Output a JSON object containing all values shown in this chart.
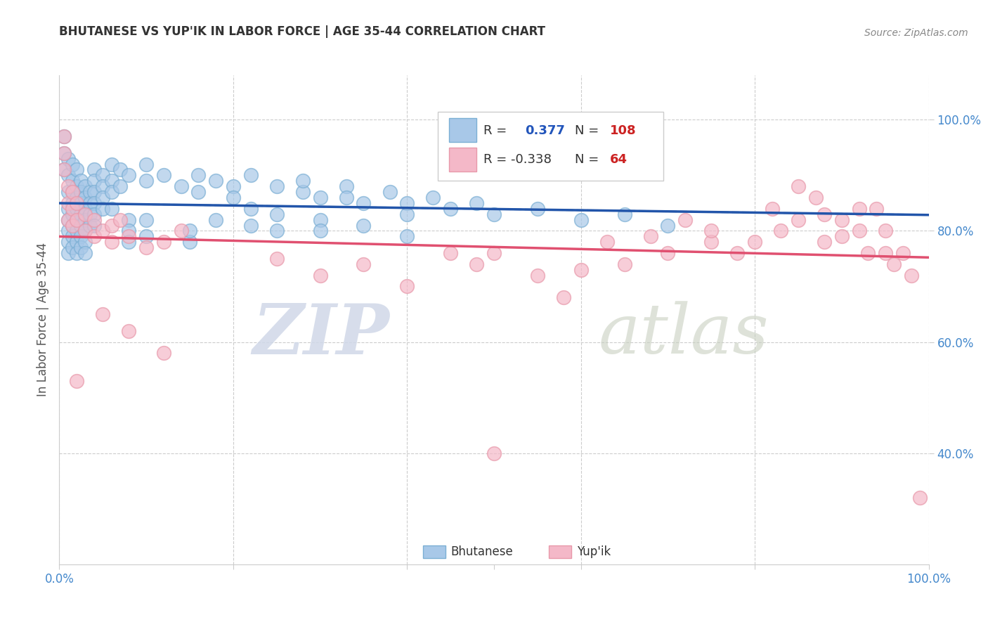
{
  "title": "BHUTANESE VS YUP'IK IN LABOR FORCE | AGE 35-44 CORRELATION CHART",
  "source_text": "Source: ZipAtlas.com",
  "ylabel": "In Labor Force | Age 35-44",
  "xlim": [
    0.0,
    1.0
  ],
  "ylim": [
    0.2,
    1.08
  ],
  "y_tick_positions": [
    0.4,
    0.6,
    0.8,
    1.0
  ],
  "x_tick_positions": [
    0.0,
    0.2,
    0.4,
    0.6,
    0.8,
    1.0
  ],
  "grid_color": "#cccccc",
  "background_color": "#ffffff",
  "watermark_zip": "ZIP",
  "watermark_atlas": "atlas",
  "blue_color": "#a8c8e8",
  "blue_edge_color": "#7bafd4",
  "pink_color": "#f4b8c8",
  "pink_edge_color": "#e899aa",
  "blue_line_color": "#2255aa",
  "pink_line_color": "#e05070",
  "blue_dashed_color": "#99bbdd",
  "tick_label_color": "#4488cc",
  "title_color": "#333333",
  "source_color": "#888888",
  "ylabel_color": "#555555",
  "blue_points": [
    [
      0.005,
      0.97
    ],
    [
      0.005,
      0.94
    ],
    [
      0.005,
      0.91
    ],
    [
      0.01,
      0.93
    ],
    [
      0.01,
      0.9
    ],
    [
      0.01,
      0.87
    ],
    [
      0.01,
      0.84
    ],
    [
      0.01,
      0.82
    ],
    [
      0.01,
      0.8
    ],
    [
      0.01,
      0.78
    ],
    [
      0.01,
      0.76
    ],
    [
      0.015,
      0.92
    ],
    [
      0.015,
      0.89
    ],
    [
      0.015,
      0.87
    ],
    [
      0.015,
      0.85
    ],
    [
      0.015,
      0.83
    ],
    [
      0.015,
      0.81
    ],
    [
      0.015,
      0.79
    ],
    [
      0.015,
      0.77
    ],
    [
      0.02,
      0.91
    ],
    [
      0.02,
      0.88
    ],
    [
      0.02,
      0.86
    ],
    [
      0.02,
      0.84
    ],
    [
      0.02,
      0.82
    ],
    [
      0.02,
      0.8
    ],
    [
      0.02,
      0.78
    ],
    [
      0.02,
      0.76
    ],
    [
      0.025,
      0.89
    ],
    [
      0.025,
      0.87
    ],
    [
      0.025,
      0.85
    ],
    [
      0.025,
      0.83
    ],
    [
      0.025,
      0.81
    ],
    [
      0.025,
      0.79
    ],
    [
      0.025,
      0.77
    ],
    [
      0.03,
      0.88
    ],
    [
      0.03,
      0.86
    ],
    [
      0.03,
      0.84
    ],
    [
      0.03,
      0.82
    ],
    [
      0.03,
      0.8
    ],
    [
      0.03,
      0.78
    ],
    [
      0.03,
      0.76
    ],
    [
      0.035,
      0.87
    ],
    [
      0.035,
      0.85
    ],
    [
      0.035,
      0.83
    ],
    [
      0.035,
      0.81
    ],
    [
      0.04,
      0.91
    ],
    [
      0.04,
      0.89
    ],
    [
      0.04,
      0.87
    ],
    [
      0.04,
      0.85
    ],
    [
      0.04,
      0.83
    ],
    [
      0.04,
      0.81
    ],
    [
      0.05,
      0.9
    ],
    [
      0.05,
      0.88
    ],
    [
      0.05,
      0.86
    ],
    [
      0.05,
      0.84
    ],
    [
      0.06,
      0.89
    ],
    [
      0.06,
      0.87
    ],
    [
      0.06,
      0.92
    ],
    [
      0.07,
      0.91
    ],
    [
      0.07,
      0.88
    ],
    [
      0.08,
      0.9
    ],
    [
      0.1,
      0.89
    ],
    [
      0.1,
      0.92
    ],
    [
      0.12,
      0.9
    ],
    [
      0.14,
      0.88
    ],
    [
      0.16,
      0.9
    ],
    [
      0.16,
      0.87
    ],
    [
      0.18,
      0.89
    ],
    [
      0.2,
      0.88
    ],
    [
      0.2,
      0.86
    ],
    [
      0.22,
      0.9
    ],
    [
      0.25,
      0.88
    ],
    [
      0.28,
      0.87
    ],
    [
      0.28,
      0.89
    ],
    [
      0.3,
      0.86
    ],
    [
      0.33,
      0.88
    ],
    [
      0.33,
      0.86
    ],
    [
      0.35,
      0.85
    ],
    [
      0.38,
      0.87
    ],
    [
      0.4,
      0.85
    ],
    [
      0.4,
      0.83
    ],
    [
      0.43,
      0.86
    ],
    [
      0.45,
      0.84
    ],
    [
      0.48,
      0.85
    ],
    [
      0.5,
      0.83
    ],
    [
      0.55,
      0.84
    ],
    [
      0.6,
      0.82
    ],
    [
      0.65,
      0.83
    ],
    [
      0.7,
      0.81
    ],
    [
      0.18,
      0.82
    ],
    [
      0.22,
      0.84
    ],
    [
      0.22,
      0.81
    ],
    [
      0.25,
      0.83
    ],
    [
      0.25,
      0.8
    ],
    [
      0.3,
      0.82
    ],
    [
      0.3,
      0.8
    ],
    [
      0.35,
      0.81
    ],
    [
      0.4,
      0.79
    ],
    [
      0.15,
      0.78
    ],
    [
      0.15,
      0.8
    ],
    [
      0.1,
      0.82
    ],
    [
      0.1,
      0.79
    ],
    [
      0.06,
      0.84
    ],
    [
      0.08,
      0.82
    ],
    [
      0.08,
      0.8
    ],
    [
      0.08,
      0.78
    ]
  ],
  "pink_points": [
    [
      0.005,
      0.97
    ],
    [
      0.005,
      0.94
    ],
    [
      0.005,
      0.91
    ],
    [
      0.01,
      0.88
    ],
    [
      0.01,
      0.85
    ],
    [
      0.01,
      0.82
    ],
    [
      0.015,
      0.87
    ],
    [
      0.015,
      0.84
    ],
    [
      0.015,
      0.81
    ],
    [
      0.02,
      0.85
    ],
    [
      0.02,
      0.82
    ],
    [
      0.03,
      0.83
    ],
    [
      0.03,
      0.8
    ],
    [
      0.04,
      0.82
    ],
    [
      0.04,
      0.79
    ],
    [
      0.05,
      0.8
    ],
    [
      0.06,
      0.81
    ],
    [
      0.06,
      0.78
    ],
    [
      0.07,
      0.82
    ],
    [
      0.08,
      0.79
    ],
    [
      0.1,
      0.77
    ],
    [
      0.12,
      0.78
    ],
    [
      0.14,
      0.8
    ],
    [
      0.02,
      0.53
    ],
    [
      0.05,
      0.65
    ],
    [
      0.08,
      0.62
    ],
    [
      0.12,
      0.58
    ],
    [
      0.25,
      0.75
    ],
    [
      0.3,
      0.72
    ],
    [
      0.35,
      0.74
    ],
    [
      0.4,
      0.7
    ],
    [
      0.45,
      0.76
    ],
    [
      0.48,
      0.74
    ],
    [
      0.5,
      0.76
    ],
    [
      0.55,
      0.72
    ],
    [
      0.58,
      0.68
    ],
    [
      0.6,
      0.73
    ],
    [
      0.63,
      0.78
    ],
    [
      0.65,
      0.74
    ],
    [
      0.68,
      0.79
    ],
    [
      0.7,
      0.76
    ],
    [
      0.72,
      0.82
    ],
    [
      0.75,
      0.78
    ],
    [
      0.75,
      0.8
    ],
    [
      0.78,
      0.76
    ],
    [
      0.8,
      0.78
    ],
    [
      0.82,
      0.84
    ],
    [
      0.83,
      0.8
    ],
    [
      0.85,
      0.82
    ],
    [
      0.85,
      0.88
    ],
    [
      0.87,
      0.86
    ],
    [
      0.88,
      0.83
    ],
    [
      0.88,
      0.78
    ],
    [
      0.9,
      0.82
    ],
    [
      0.9,
      0.79
    ],
    [
      0.92,
      0.84
    ],
    [
      0.92,
      0.8
    ],
    [
      0.93,
      0.76
    ],
    [
      0.94,
      0.84
    ],
    [
      0.95,
      0.8
    ],
    [
      0.95,
      0.76
    ],
    [
      0.96,
      0.74
    ],
    [
      0.97,
      0.76
    ],
    [
      0.98,
      0.72
    ],
    [
      0.99,
      0.32
    ],
    [
      0.5,
      0.4
    ]
  ],
  "blue_trend_x": [
    0.0,
    1.0
  ],
  "blue_trend_y_start": 0.845,
  "blue_trend_y_end": 0.9,
  "pink_trend_x": [
    0.0,
    1.0
  ],
  "pink_trend_y_start": 0.878,
  "pink_trend_y_end": 0.735
}
